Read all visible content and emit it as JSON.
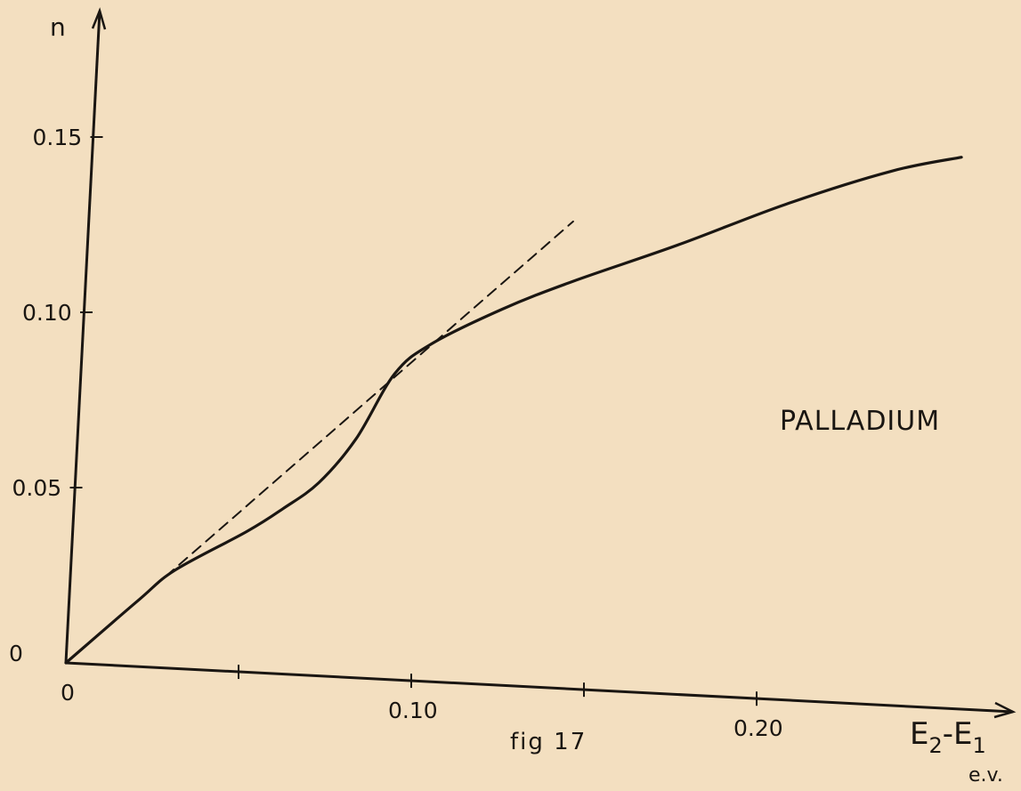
{
  "chart_data": {
    "type": "line",
    "title": "",
    "annotation": "PALLADIUM",
    "caption": "fig 17",
    "xlabel": "E2-E1",
    "xlabel_main": "E",
    "xlabel_sub1": "2",
    "xlabel_dash": "-E",
    "xlabel_sub2": "1",
    "xunit": "e.v.",
    "ylabel": "n",
    "xlim": [
      0,
      0.27
    ],
    "ylim": [
      0,
      0.165
    ],
    "x_tick_values": [
      0,
      0.05,
      0.1,
      0.15,
      0.2
    ],
    "x_tick_labels": [
      "0",
      "",
      "0.10",
      "",
      "0.20"
    ],
    "y_tick_values": [
      0,
      0.05,
      0.1,
      0.15
    ],
    "y_tick_labels": [
      "0",
      "0.05",
      "0.10",
      "0.15"
    ],
    "grid": false,
    "legend": "none",
    "series": [
      {
        "style": "solid",
        "color": "#1a1612",
        "x": [
          0,
          0.02,
          0.03,
          0.05,
          0.06,
          0.07,
          0.08,
          0.09,
          0.1,
          0.12,
          0.14,
          0.17,
          0.2,
          0.23,
          0.25
        ],
        "y": [
          0,
          0.019,
          0.028,
          0.04,
          0.047,
          0.055,
          0.068,
          0.087,
          0.096,
          0.107,
          0.116,
          0.128,
          0.141,
          0.152,
          0.157
        ]
      },
      {
        "style": "dashed",
        "color": "#1a1612",
        "x": [
          0.02,
          0.139
        ],
        "y": [
          0.019,
          0.133
        ]
      }
    ]
  }
}
